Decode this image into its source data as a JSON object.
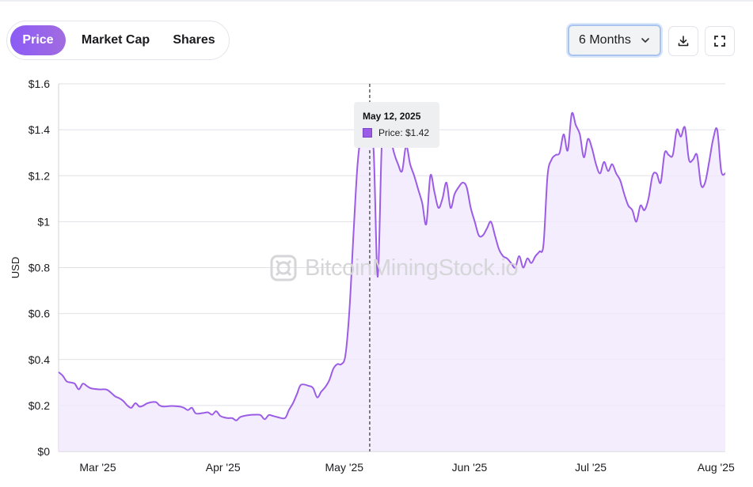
{
  "tabs": [
    {
      "label": "Price",
      "active": true
    },
    {
      "label": "Market Cap",
      "active": false
    },
    {
      "label": "Shares",
      "active": false
    }
  ],
  "range_select": {
    "value": "6 Months",
    "icon": "chevron-down-icon"
  },
  "toolbar": {
    "download_icon": "download-icon",
    "fullscreen_icon": "fullscreen-icon"
  },
  "watermark": {
    "text": "BitcoinMiningStock.io",
    "icon": "logo-icon"
  },
  "tooltip": {
    "date": "May 12, 2025",
    "label": "Price: $1.42"
  },
  "colors": {
    "line": "#9b5de5",
    "fill": "#f1e9fc",
    "accent_gradient": [
      "#8b5cf6",
      "#a26be0"
    ]
  },
  "chart_data": {
    "type": "area",
    "title": "",
    "xlabel": "",
    "ylabel": "USD",
    "ylim": [
      0,
      1.6
    ],
    "yticks": [
      0,
      0.2,
      0.4,
      0.6,
      0.8,
      1,
      1.2,
      1.4,
      1.6
    ],
    "ytick_labels": [
      "$0",
      "$0.2",
      "$0.4",
      "$0.6",
      "$0.8",
      "$1",
      "$1.2",
      "$1.4",
      "$1.6"
    ],
    "xticks": [
      {
        "label": "Mar '25",
        "date": "2025-03-01"
      },
      {
        "label": "Apr '25",
        "date": "2025-04-01"
      },
      {
        "label": "May '25",
        "date": "2025-05-01"
      },
      {
        "label": "Jun '25",
        "date": "2025-06-01"
      },
      {
        "label": "Jul '25",
        "date": "2025-07-01"
      },
      {
        "label": "Aug '25",
        "date": "2025-08-01"
      }
    ],
    "grid": true,
    "legend": "none",
    "crosshair_date": "2025-05-12",
    "series": [
      {
        "name": "Price",
        "points": [
          {
            "x": "2025-02-24",
            "y": 0.345
          },
          {
            "x": "2025-02-25",
            "y": 0.33
          },
          {
            "x": "2025-02-26",
            "y": 0.305
          },
          {
            "x": "2025-02-27",
            "y": 0.3
          },
          {
            "x": "2025-02-28",
            "y": 0.295
          },
          {
            "x": "2025-03-01",
            "y": 0.27
          },
          {
            "x": "2025-03-02",
            "y": 0.295
          },
          {
            "x": "2025-03-03",
            "y": 0.285
          },
          {
            "x": "2025-03-04",
            "y": 0.275
          },
          {
            "x": "2025-03-06",
            "y": 0.27
          },
          {
            "x": "2025-03-08",
            "y": 0.268
          },
          {
            "x": "2025-03-10",
            "y": 0.24
          },
          {
            "x": "2025-03-11",
            "y": 0.232
          },
          {
            "x": "2025-03-12",
            "y": 0.22
          },
          {
            "x": "2025-03-13",
            "y": 0.2
          },
          {
            "x": "2025-03-14",
            "y": 0.19
          },
          {
            "x": "2025-03-15",
            "y": 0.21
          },
          {
            "x": "2025-03-16",
            "y": 0.195
          },
          {
            "x": "2025-03-17",
            "y": 0.2
          },
          {
            "x": "2025-03-18",
            "y": 0.21
          },
          {
            "x": "2025-03-20",
            "y": 0.215
          },
          {
            "x": "2025-03-21",
            "y": 0.2
          },
          {
            "x": "2025-03-22",
            "y": 0.195
          },
          {
            "x": "2025-03-24",
            "y": 0.198
          },
          {
            "x": "2025-03-26",
            "y": 0.195
          },
          {
            "x": "2025-03-27",
            "y": 0.19
          },
          {
            "x": "2025-03-28",
            "y": 0.18
          },
          {
            "x": "2025-03-29",
            "y": 0.19
          },
          {
            "x": "2025-03-30",
            "y": 0.165
          },
          {
            "x": "2025-04-01",
            "y": 0.168
          },
          {
            "x": "2025-04-02",
            "y": 0.17
          },
          {
            "x": "2025-04-03",
            "y": 0.16
          },
          {
            "x": "2025-04-04",
            "y": 0.175
          },
          {
            "x": "2025-04-05",
            "y": 0.155
          },
          {
            "x": "2025-04-06",
            "y": 0.148
          },
          {
            "x": "2025-04-07",
            "y": 0.145
          },
          {
            "x": "2025-04-08",
            "y": 0.145
          },
          {
            "x": "2025-04-09",
            "y": 0.135
          },
          {
            "x": "2025-04-10",
            "y": 0.15
          },
          {
            "x": "2025-04-12",
            "y": 0.158
          },
          {
            "x": "2025-04-14",
            "y": 0.16
          },
          {
            "x": "2025-04-15",
            "y": 0.158
          },
          {
            "x": "2025-04-16",
            "y": 0.14
          },
          {
            "x": "2025-04-17",
            "y": 0.158
          },
          {
            "x": "2025-04-18",
            "y": 0.155
          },
          {
            "x": "2025-04-19",
            "y": 0.15
          },
          {
            "x": "2025-04-21",
            "y": 0.145
          },
          {
            "x": "2025-04-22",
            "y": 0.18
          },
          {
            "x": "2025-04-23",
            "y": 0.21
          },
          {
            "x": "2025-04-24",
            "y": 0.25
          },
          {
            "x": "2025-04-25",
            "y": 0.29
          },
          {
            "x": "2025-04-27",
            "y": 0.285
          },
          {
            "x": "2025-04-28",
            "y": 0.275
          },
          {
            "x": "2025-04-29",
            "y": 0.235
          },
          {
            "x": "2025-04-30",
            "y": 0.26
          },
          {
            "x": "2025-05-01",
            "y": 0.28
          },
          {
            "x": "2025-05-02",
            "y": 0.31
          },
          {
            "x": "2025-05-03",
            "y": 0.36
          },
          {
            "x": "2025-05-04",
            "y": 0.38
          },
          {
            "x": "2025-05-05",
            "y": 0.38
          },
          {
            "x": "2025-05-06",
            "y": 0.42
          },
          {
            "x": "2025-05-07",
            "y": 0.62
          },
          {
            "x": "2025-05-08",
            "y": 0.95
          },
          {
            "x": "2025-05-09",
            "y": 1.25
          },
          {
            "x": "2025-05-10",
            "y": 1.38
          },
          {
            "x": "2025-05-11",
            "y": 1.35
          },
          {
            "x": "2025-05-12",
            "y": 1.42
          },
          {
            "x": "2025-05-13",
            "y": 1.3
          },
          {
            "x": "2025-05-14",
            "y": 0.76
          },
          {
            "x": "2025-05-15",
            "y": 1.34
          },
          {
            "x": "2025-05-16",
            "y": 1.45
          },
          {
            "x": "2025-05-17",
            "y": 1.38
          },
          {
            "x": "2025-05-18",
            "y": 1.3
          },
          {
            "x": "2025-05-19",
            "y": 1.25
          },
          {
            "x": "2025-05-20",
            "y": 1.22
          },
          {
            "x": "2025-05-21",
            "y": 1.33
          },
          {
            "x": "2025-05-22",
            "y": 1.25
          },
          {
            "x": "2025-05-23",
            "y": 1.2
          },
          {
            "x": "2025-05-24",
            "y": 1.14
          },
          {
            "x": "2025-05-25",
            "y": 1.08
          },
          {
            "x": "2025-05-26",
            "y": 0.99
          },
          {
            "x": "2025-05-27",
            "y": 1.2
          },
          {
            "x": "2025-05-28",
            "y": 1.13
          },
          {
            "x": "2025-05-29",
            "y": 1.06
          },
          {
            "x": "2025-05-30",
            "y": 1.1
          },
          {
            "x": "2025-05-31",
            "y": 1.17
          },
          {
            "x": "2025-06-01",
            "y": 1.06
          },
          {
            "x": "2025-06-02",
            "y": 1.12
          },
          {
            "x": "2025-06-03",
            "y": 1.15
          },
          {
            "x": "2025-06-04",
            "y": 1.17
          },
          {
            "x": "2025-06-05",
            "y": 1.15
          },
          {
            "x": "2025-06-06",
            "y": 1.06
          },
          {
            "x": "2025-06-07",
            "y": 1.0
          },
          {
            "x": "2025-06-08",
            "y": 0.94
          },
          {
            "x": "2025-06-09",
            "y": 0.94
          },
          {
            "x": "2025-06-10",
            "y": 0.97
          },
          {
            "x": "2025-06-11",
            "y": 1.0
          },
          {
            "x": "2025-06-12",
            "y": 0.94
          },
          {
            "x": "2025-06-13",
            "y": 0.88
          },
          {
            "x": "2025-06-14",
            "y": 0.85
          },
          {
            "x": "2025-06-15",
            "y": 0.84
          },
          {
            "x": "2025-06-16",
            "y": 0.82
          },
          {
            "x": "2025-06-17",
            "y": 0.8
          },
          {
            "x": "2025-06-18",
            "y": 0.85
          },
          {
            "x": "2025-06-19",
            "y": 0.8
          },
          {
            "x": "2025-06-20",
            "y": 0.84
          },
          {
            "x": "2025-06-21",
            "y": 0.82
          },
          {
            "x": "2025-06-22",
            "y": 0.85
          },
          {
            "x": "2025-06-23",
            "y": 0.87
          },
          {
            "x": "2025-06-24",
            "y": 0.9
          },
          {
            "x": "2025-06-25",
            "y": 1.2
          },
          {
            "x": "2025-06-26",
            "y": 1.27
          },
          {
            "x": "2025-06-27",
            "y": 1.29
          },
          {
            "x": "2025-06-28",
            "y": 1.3
          },
          {
            "x": "2025-06-29",
            "y": 1.38
          },
          {
            "x": "2025-06-30",
            "y": 1.31
          },
          {
            "x": "2025-07-01",
            "y": 1.47
          },
          {
            "x": "2025-07-02",
            "y": 1.42
          },
          {
            "x": "2025-07-03",
            "y": 1.38
          },
          {
            "x": "2025-07-04",
            "y": 1.28
          },
          {
            "x": "2025-07-05",
            "y": 1.36
          },
          {
            "x": "2025-07-06",
            "y": 1.32
          },
          {
            "x": "2025-07-07",
            "y": 1.25
          },
          {
            "x": "2025-07-08",
            "y": 1.21
          },
          {
            "x": "2025-07-09",
            "y": 1.26
          },
          {
            "x": "2025-07-10",
            "y": 1.22
          },
          {
            "x": "2025-07-11",
            "y": 1.25
          },
          {
            "x": "2025-07-12",
            "y": 1.21
          },
          {
            "x": "2025-07-13",
            "y": 1.18
          },
          {
            "x": "2025-07-14",
            "y": 1.12
          },
          {
            "x": "2025-07-15",
            "y": 1.07
          },
          {
            "x": "2025-07-16",
            "y": 1.05
          },
          {
            "x": "2025-07-17",
            "y": 1.0
          },
          {
            "x": "2025-07-18",
            "y": 1.07
          },
          {
            "x": "2025-07-19",
            "y": 1.05
          },
          {
            "x": "2025-07-20",
            "y": 1.1
          },
          {
            "x": "2025-07-21",
            "y": 1.2
          },
          {
            "x": "2025-07-22",
            "y": 1.21
          },
          {
            "x": "2025-07-23",
            "y": 1.17
          },
          {
            "x": "2025-07-24",
            "y": 1.3
          },
          {
            "x": "2025-07-25",
            "y": 1.29
          },
          {
            "x": "2025-07-26",
            "y": 1.29
          },
          {
            "x": "2025-07-27",
            "y": 1.4
          },
          {
            "x": "2025-07-28",
            "y": 1.37
          },
          {
            "x": "2025-07-29",
            "y": 1.41
          },
          {
            "x": "2025-07-30",
            "y": 1.27
          },
          {
            "x": "2025-07-31",
            "y": 1.27
          },
          {
            "x": "2025-08-01",
            "y": 1.29
          },
          {
            "x": "2025-08-02",
            "y": 1.16
          },
          {
            "x": "2025-08-03",
            "y": 1.17
          },
          {
            "x": "2025-08-04",
            "y": 1.26
          },
          {
            "x": "2025-08-05",
            "y": 1.36
          },
          {
            "x": "2025-08-06",
            "y": 1.4
          },
          {
            "x": "2025-08-07",
            "y": 1.22
          },
          {
            "x": "2025-08-08",
            "y": 1.21
          }
        ]
      }
    ]
  }
}
